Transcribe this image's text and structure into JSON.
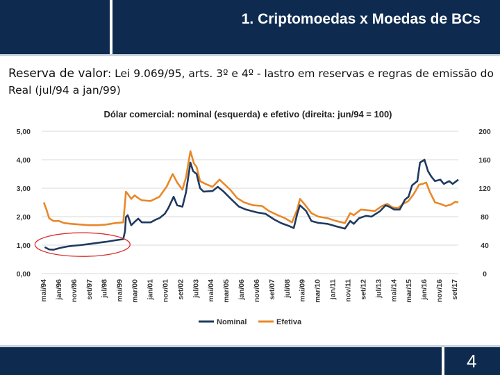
{
  "slide": {
    "title": "1. Criptomoedas x Moedas de BCs",
    "subtitle_lead": "Reserva de valor",
    "subtitle_rest": ": Lei 9.069/95, arts. 3º e 4º - lastro em reservas e regras de emissão do Real (jul/94 a jan/99)",
    "page_number": "4"
  },
  "colors": {
    "header": "#0e2b4f",
    "nominal": "#1f3a5f",
    "efetiva": "#e8882a",
    "highlight_circle": "#d9302c"
  },
  "chart_data": {
    "type": "line",
    "title": "Dólar comercial: nominal (esquerda) e efetivo (direita: jun/94 = 100)",
    "x_ticks": [
      "mai/94",
      "jan/96",
      "nov/96",
      "set/97",
      "jul/98",
      "mai/99",
      "mar/00",
      "jan/01",
      "nov/01",
      "set/02",
      "jul/03",
      "mai/04",
      "mar/05",
      "jan/06",
      "nov/06",
      "set/07",
      "jul/08",
      "mai/09",
      "mar/10",
      "jan/11",
      "nov/11",
      "set/12",
      "jul/13",
      "mai/14",
      "mar/15",
      "jan/16",
      "nov/16",
      "set/17"
    ],
    "x_range": [
      1994.33,
      2017.92
    ],
    "y_left": {
      "ticks": [
        "0,00",
        "1,00",
        "2,00",
        "3,00",
        "4,00",
        "5,00"
      ],
      "range": [
        0,
        5
      ]
    },
    "y_right": {
      "ticks": [
        "0",
        "40",
        "80",
        "120",
        "160",
        "200"
      ],
      "range": [
        0,
        200
      ]
    },
    "highlight": {
      "label": "jul/94 a jan/99",
      "x_range": [
        1994.5,
        1999.1
      ]
    },
    "series": [
      {
        "name": "Nominal",
        "axis": "left",
        "points": [
          [
            1994.5,
            0.93
          ],
          [
            1994.75,
            0.85
          ],
          [
            1995.0,
            0.84
          ],
          [
            1995.25,
            0.88
          ],
          [
            1995.5,
            0.92
          ],
          [
            1995.75,
            0.95
          ],
          [
            1996.0,
            0.97
          ],
          [
            1996.5,
            1.0
          ],
          [
            1997.0,
            1.04
          ],
          [
            1997.5,
            1.08
          ],
          [
            1998.0,
            1.12
          ],
          [
            1998.5,
            1.17
          ],
          [
            1998.95,
            1.21
          ],
          [
            1999.05,
            1.5
          ],
          [
            1999.1,
            1.98
          ],
          [
            1999.2,
            2.05
          ],
          [
            1999.4,
            1.7
          ],
          [
            1999.6,
            1.82
          ],
          [
            1999.8,
            1.93
          ],
          [
            2000.0,
            1.8
          ],
          [
            2000.5,
            1.8
          ],
          [
            2000.8,
            1.9
          ],
          [
            2001.0,
            1.95
          ],
          [
            2001.3,
            2.1
          ],
          [
            2001.5,
            2.3
          ],
          [
            2001.8,
            2.7
          ],
          [
            2002.0,
            2.4
          ],
          [
            2002.3,
            2.35
          ],
          [
            2002.5,
            2.85
          ],
          [
            2002.75,
            3.9
          ],
          [
            2002.9,
            3.6
          ],
          [
            2003.1,
            3.5
          ],
          [
            2003.3,
            3.0
          ],
          [
            2003.5,
            2.88
          ],
          [
            2004.0,
            2.9
          ],
          [
            2004.3,
            3.05
          ],
          [
            2004.6,
            2.9
          ],
          [
            2005.0,
            2.65
          ],
          [
            2005.5,
            2.35
          ],
          [
            2005.9,
            2.25
          ],
          [
            2006.5,
            2.15
          ],
          [
            2007.0,
            2.1
          ],
          [
            2007.5,
            1.9
          ],
          [
            2007.9,
            1.77
          ],
          [
            2008.3,
            1.68
          ],
          [
            2008.6,
            1.6
          ],
          [
            2008.8,
            2.1
          ],
          [
            2008.95,
            2.4
          ],
          [
            2009.3,
            2.2
          ],
          [
            2009.6,
            1.85
          ],
          [
            2010.0,
            1.78
          ],
          [
            2010.5,
            1.75
          ],
          [
            2011.0,
            1.66
          ],
          [
            2011.5,
            1.58
          ],
          [
            2011.8,
            1.85
          ],
          [
            2012.0,
            1.75
          ],
          [
            2012.3,
            1.95
          ],
          [
            2012.7,
            2.03
          ],
          [
            2013.0,
            2.0
          ],
          [
            2013.5,
            2.2
          ],
          [
            2013.8,
            2.4
          ],
          [
            2014.0,
            2.35
          ],
          [
            2014.3,
            2.25
          ],
          [
            2014.6,
            2.25
          ],
          [
            2014.9,
            2.6
          ],
          [
            2015.1,
            2.7
          ],
          [
            2015.3,
            3.1
          ],
          [
            2015.6,
            3.25
          ],
          [
            2015.75,
            3.9
          ],
          [
            2016.0,
            4.0
          ],
          [
            2016.2,
            3.6
          ],
          [
            2016.4,
            3.4
          ],
          [
            2016.6,
            3.25
          ],
          [
            2016.9,
            3.3
          ],
          [
            2017.1,
            3.15
          ],
          [
            2017.4,
            3.25
          ],
          [
            2017.6,
            3.15
          ],
          [
            2017.92,
            3.3
          ]
        ]
      },
      {
        "name": "Efetiva",
        "axis": "right",
        "points": [
          [
            1994.45,
            100
          ],
          [
            1994.6,
            90
          ],
          [
            1994.75,
            78
          ],
          [
            1995.0,
            74
          ],
          [
            1995.3,
            74
          ],
          [
            1995.6,
            71
          ],
          [
            1996.0,
            70
          ],
          [
            1996.5,
            69
          ],
          [
            1997.0,
            68
          ],
          [
            1997.5,
            68
          ],
          [
            1998.0,
            69
          ],
          [
            1998.5,
            71
          ],
          [
            1998.95,
            72
          ],
          [
            1999.05,
            100
          ],
          [
            1999.1,
            115
          ],
          [
            1999.2,
            112
          ],
          [
            1999.4,
            105
          ],
          [
            1999.6,
            110
          ],
          [
            1999.8,
            106
          ],
          [
            2000.0,
            103
          ],
          [
            2000.5,
            102
          ],
          [
            2001.0,
            108
          ],
          [
            2001.4,
            122
          ],
          [
            2001.75,
            140
          ],
          [
            2002.0,
            128
          ],
          [
            2002.3,
            118
          ],
          [
            2002.5,
            135
          ],
          [
            2002.75,
            172
          ],
          [
            2002.95,
            155
          ],
          [
            2003.1,
            150
          ],
          [
            2003.3,
            130
          ],
          [
            2003.6,
            126
          ],
          [
            2004.0,
            122
          ],
          [
            2004.4,
            132
          ],
          [
            2004.7,
            125
          ],
          [
            2005.0,
            118
          ],
          [
            2005.4,
            106
          ],
          [
            2005.8,
            100
          ],
          [
            2006.3,
            96
          ],
          [
            2006.8,
            95
          ],
          [
            2007.2,
            88
          ],
          [
            2007.7,
            82
          ],
          [
            2008.1,
            78
          ],
          [
            2008.5,
            72
          ],
          [
            2008.8,
            90
          ],
          [
            2008.95,
            105
          ],
          [
            2009.2,
            98
          ],
          [
            2009.6,
            85
          ],
          [
            2010.0,
            80
          ],
          [
            2010.5,
            78
          ],
          [
            2011.0,
            74
          ],
          [
            2011.5,
            71
          ],
          [
            2011.8,
            85
          ],
          [
            2012.0,
            82
          ],
          [
            2012.4,
            90
          ],
          [
            2012.8,
            89
          ],
          [
            2013.2,
            88
          ],
          [
            2013.6,
            95
          ],
          [
            2013.9,
            98
          ],
          [
            2014.2,
            93
          ],
          [
            2014.5,
            92
          ],
          [
            2014.8,
            98
          ],
          [
            2015.1,
            102
          ],
          [
            2015.4,
            112
          ],
          [
            2015.7,
            125
          ],
          [
            2015.9,
            126
          ],
          [
            2016.1,
            128
          ],
          [
            2016.3,
            115
          ],
          [
            2016.6,
            100
          ],
          [
            2016.9,
            98
          ],
          [
            2017.2,
            95
          ],
          [
            2017.5,
            97
          ],
          [
            2017.75,
            101
          ],
          [
            2017.92,
            100
          ]
        ]
      }
    ],
    "legend": [
      "Nominal",
      "Efetiva"
    ]
  }
}
